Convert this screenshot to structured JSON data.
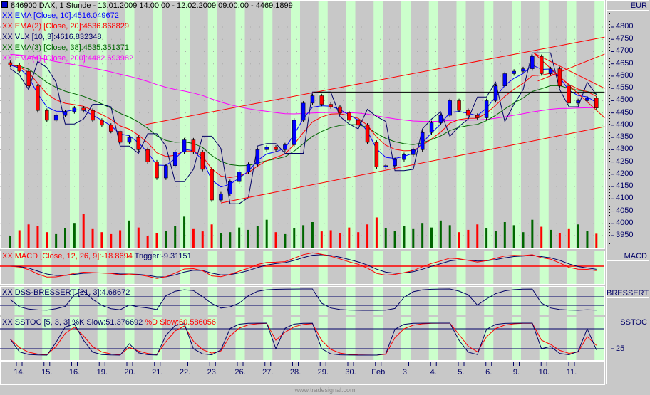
{
  "header": {
    "title": "846900  DAX, 1 Stunde - 13.01.2009 14:00:00 - 12.02.2009 09:00:00 - 4469.1899"
  },
  "legend": [
    {
      "tag": "XX",
      "text": "EMA [Close, 10]:4516.049672",
      "color": "#0000ff"
    },
    {
      "tag": "XX",
      "text": "EMA(2) [Close, 20]:4536.868829",
      "color": "#ff0000"
    },
    {
      "tag": "XX",
      "text": "VLX [10, 3]:4616.832348",
      "color": "#000066"
    },
    {
      "tag": "XX",
      "text": "EMA(3) [Close, 38]:4535.351371",
      "color": "#006600"
    },
    {
      "tag": "XX",
      "text": "EMA(4) [Close, 200]:4482.693982",
      "color": "#ff00ff"
    }
  ],
  "macd": {
    "label_red": "XX MACD [Close, 12, 26, 9]:-18.8694",
    "label_trigger": " Trigger:-9.31151",
    "box": "MACD"
  },
  "dss": {
    "label": "XX DSS-BRESSERT [21, 3]:4.68672",
    "box": "BRESSERT"
  },
  "sstoc": {
    "label_k": "XX SSTOC [5, 3, 3] %K Slow:51.376692",
    "label_d": " %D Slow:60.586056",
    "box": "SSTOC",
    "tick": "25"
  },
  "price_axis": {
    "unit": "EUR",
    "ticks": [
      "4800",
      "4750",
      "4700",
      "4650",
      "4600",
      "4550",
      "4500",
      "4450",
      "4400",
      "4350",
      "4300",
      "4250",
      "4200",
      "4150",
      "4100",
      "4050",
      "4000",
      "3950"
    ]
  },
  "watermark": "www.tradesignal.com",
  "colors": {
    "background": "#c8c8c8",
    "session_band": "#ccffcc",
    "up": "#0000ff",
    "down": "#ff0000",
    "volume_up": "#006600",
    "volume_down": "#ff0000",
    "axis_text": "#000066"
  },
  "chart_data": {
    "type": "candlestick",
    "title": "846900  DAX, 1 Stunde",
    "ylabel": "EUR",
    "ylim": [
      3950,
      4800
    ],
    "grid": true,
    "x_tick_labels": [
      "14.",
      "15.",
      "16.",
      "19.",
      "20.",
      "21.",
      "22.",
      "23.",
      "26.",
      "27.",
      "28.",
      "29.",
      "30.",
      "Feb",
      "3.",
      "4.",
      "5.",
      "6.",
      "9.",
      "10.",
      "11."
    ],
    "close": [
      4645,
      4620,
      4560,
      4460,
      4420,
      4440,
      4455,
      4470,
      4460,
      4420,
      4400,
      4375,
      4330,
      4350,
      4300,
      4250,
      4185,
      4235,
      4290,
      4340,
      4290,
      4220,
      4095,
      4120,
      4170,
      4210,
      4240,
      4300,
      4310,
      4300,
      4320,
      4420,
      4490,
      4520,
      4485,
      4475,
      4450,
      4420,
      4400,
      4330,
      4230,
      4235,
      4260,
      4280,
      4300,
      4370,
      4410,
      4440,
      4500,
      4460,
      4440,
      4430,
      4500,
      4560,
      4610,
      4620,
      4630,
      4680,
      4610,
      4630,
      4560,
      4490,
      4500,
      4510,
      4470
    ],
    "volume": [
      30,
      45,
      60,
      55,
      40,
      35,
      50,
      62,
      88,
      48,
      40,
      35,
      45,
      70,
      52,
      30,
      38,
      44,
      55,
      80,
      48,
      42,
      60,
      38,
      40,
      52,
      46,
      56,
      72,
      40,
      35,
      50,
      58,
      66,
      42,
      45,
      38,
      52,
      40,
      60,
      78,
      50,
      44,
      56,
      48,
      62,
      52,
      70,
      58,
      40,
      46,
      60,
      50,
      44,
      66,
      58,
      40,
      72,
      54,
      46,
      38,
      48,
      60,
      44,
      36
    ],
    "trendlines": [
      {
        "from": [
          14.8,
          4403
        ],
        "to": [
          64.9,
          4759
        ],
        "color": "#ff0000"
      },
      {
        "from": [
          23,
          4083
        ],
        "to": [
          64.9,
          4394
        ],
        "color": "#ff0000"
      },
      {
        "from": [
          33.1,
          4535
        ],
        "to": [
          64.9,
          4535
        ],
        "color": "#000000"
      },
      {
        "from": [
          57.2,
          4693
        ],
        "to": [
          64.9,
          4550
        ],
        "color": "#ff0000"
      },
      {
        "from": [
          57.2,
          4693
        ],
        "to": [
          64.9,
          4430
        ],
        "color": "#ff0000"
      },
      {
        "from": [
          57.6,
          4580
        ],
        "to": [
          64.9,
          4690
        ],
        "color": "#ff0000"
      }
    ],
    "indicators": [
      "EMA 10",
      "EMA 20",
      "VLX 10,3",
      "EMA 38",
      "EMA 200",
      "MACD 12,26,9",
      "DSS-BRESSERT 21,3",
      "SSTOC 5,3,3"
    ]
  }
}
